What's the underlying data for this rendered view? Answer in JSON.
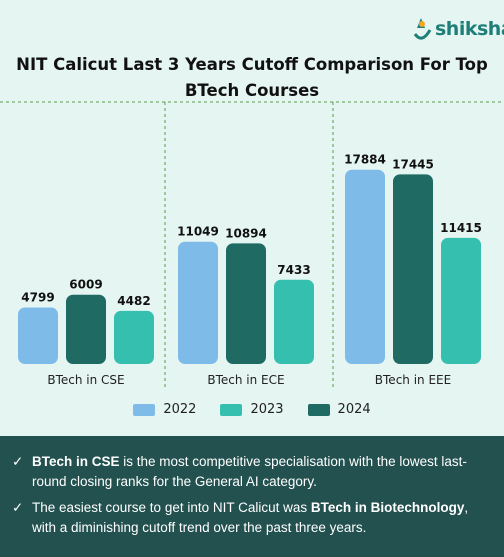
{
  "brand": {
    "name": "shiksha"
  },
  "title": {
    "line1": "NIT Calicut Last 3 Years Cutoff Comparison  For Top",
    "line2": "BTech Courses"
  },
  "chart_data": {
    "type": "bar",
    "categories": [
      "BTech in CSE",
      "BTech in ECE",
      "BTech in EEE"
    ],
    "series": [
      {
        "name": "2022",
        "color": "#7fbbe9",
        "values": [
          4799,
          11049,
          17884
        ]
      },
      {
        "name": "2024",
        "color": "#1f6b63",
        "values": [
          6009,
          10894,
          17445
        ]
      },
      {
        "name": "2023",
        "color": "#35bfae",
        "values": [
          4482,
          7433,
          11415
        ]
      }
    ],
    "legend": [
      {
        "name": "2022",
        "color": "#7fbbe9"
      },
      {
        "name": "2023",
        "color": "#35bfae"
      },
      {
        "name": "2024",
        "color": "#1f6b63"
      }
    ],
    "ylim": [
      0,
      19000
    ],
    "legend_position": "bottom",
    "grid": false
  },
  "notes": [
    {
      "bold": "BTech in CSE",
      "text": " is the most competitive specialisation with the lowest last-round closing ranks for the General AI category."
    },
    {
      "prefix": "The easiest course to get into NIT Calicut was ",
      "bold": "BTech in Biotechnology",
      "text": ", with a diminishing cutoff trend over the past three years."
    }
  ],
  "icons": {
    "check": "check-icon",
    "logo": "shiksha-logo-icon"
  }
}
